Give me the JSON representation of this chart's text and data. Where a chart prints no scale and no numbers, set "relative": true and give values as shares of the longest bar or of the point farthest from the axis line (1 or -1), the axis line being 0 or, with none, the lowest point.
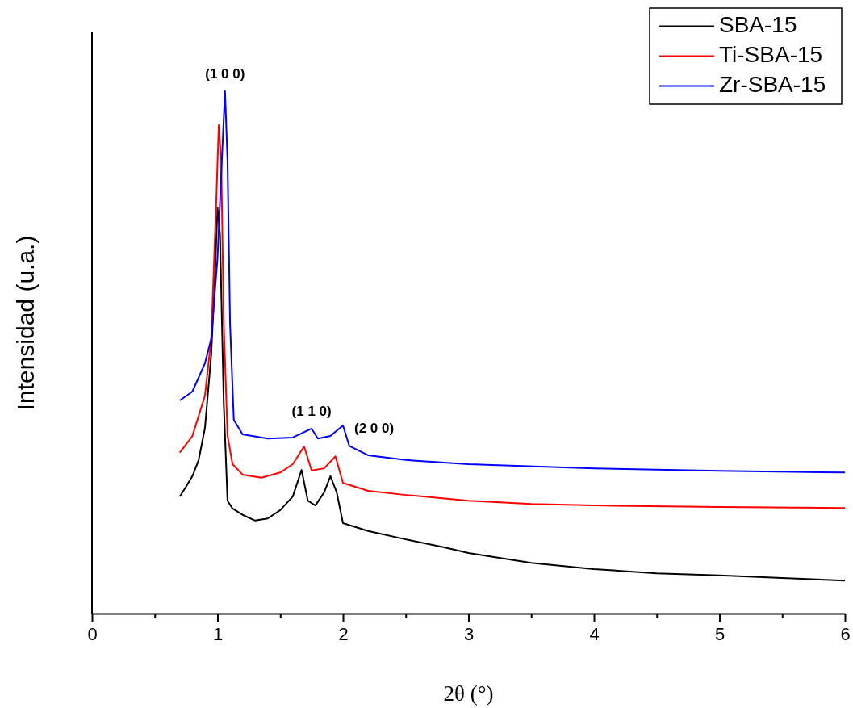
{
  "chart_data": {
    "type": "line",
    "relative": true,
    "xlabel": "2θ (°)",
    "ylabel": "Intensidad (u.a.)",
    "xlim": [
      0,
      6
    ],
    "xticks": [
      0,
      {
        "value": 0.5,
        "label": null
      },
      1,
      {
        "value": 1.5,
        "label": null
      },
      2,
      {
        "value": 2.5,
        "label": null
      },
      3,
      {
        "value": 3.5,
        "label": null
      },
      4,
      {
        "value": 4.5,
        "label": null
      },
      5,
      {
        "value": 5.5,
        "label": null
      },
      6
    ],
    "legend": "top right",
    "grid": false,
    "marker": "none",
    "line_style": "solid",
    "annotations": [
      {
        "text": "(1 0 0)",
        "x": 1.06,
        "y": 1.0
      },
      {
        "text": "(1 1 0)",
        "x": 1.75,
        "y": 0.354
      },
      {
        "text": "(2 0 0)",
        "x": 2.0,
        "y": 0.36
      }
    ],
    "series": [
      {
        "name": "SBA-15",
        "color": "#000000",
        "x": [
          0.7,
          0.75,
          0.8,
          0.85,
          0.9,
          0.95,
          0.98,
          1.0,
          1.02,
          1.05,
          1.08,
          1.12,
          1.2,
          1.3,
          1.4,
          1.5,
          1.6,
          1.67,
          1.72,
          1.78,
          1.85,
          1.9,
          1.95,
          2.0,
          2.2,
          2.5,
          2.8,
          3.0,
          3.5,
          4.0,
          4.5,
          5.0,
          5.5,
          6.0
        ],
        "values": [
          0.224,
          0.243,
          0.263,
          0.294,
          0.355,
          0.495,
          0.649,
          0.777,
          0.726,
          0.402,
          0.216,
          0.201,
          0.189,
          0.178,
          0.182,
          0.198,
          0.224,
          0.275,
          0.216,
          0.207,
          0.232,
          0.263,
          0.232,
          0.173,
          0.158,
          0.142,
          0.127,
          0.116,
          0.097,
          0.085,
          0.077,
          0.073,
          0.068,
          0.063
        ]
      },
      {
        "name": "Ti-SBA-15",
        "color": "#ff0000",
        "x": [
          0.7,
          0.8,
          0.9,
          0.95,
          0.99,
          1.01,
          1.03,
          1.05,
          1.08,
          1.12,
          1.2,
          1.35,
          1.5,
          1.6,
          1.69,
          1.75,
          1.85,
          1.94,
          2.0,
          2.2,
          2.5,
          3.0,
          3.5,
          4.0,
          5.0,
          6.0
        ],
        "values": [
          0.308,
          0.34,
          0.417,
          0.526,
          0.788,
          0.935,
          0.866,
          0.556,
          0.34,
          0.286,
          0.266,
          0.26,
          0.27,
          0.286,
          0.32,
          0.274,
          0.278,
          0.301,
          0.25,
          0.235,
          0.227,
          0.216,
          0.21,
          0.207,
          0.204,
          0.202
        ]
      },
      {
        "name": "Zr-SBA-15",
        "color": "#0000ff",
        "x": [
          0.7,
          0.8,
          0.9,
          0.95,
          1.0,
          1.04,
          1.06,
          1.08,
          1.1,
          1.13,
          1.2,
          1.4,
          1.6,
          1.75,
          1.8,
          1.9,
          2.0,
          2.05,
          2.2,
          2.5,
          3.0,
          4.0,
          5.0,
          6.0
        ],
        "values": [
          0.408,
          0.425,
          0.479,
          0.526,
          0.68,
          0.896,
          1.0,
          0.866,
          0.556,
          0.371,
          0.343,
          0.335,
          0.337,
          0.354,
          0.335,
          0.34,
          0.36,
          0.321,
          0.303,
          0.294,
          0.286,
          0.278,
          0.273,
          0.27
        ]
      }
    ]
  }
}
